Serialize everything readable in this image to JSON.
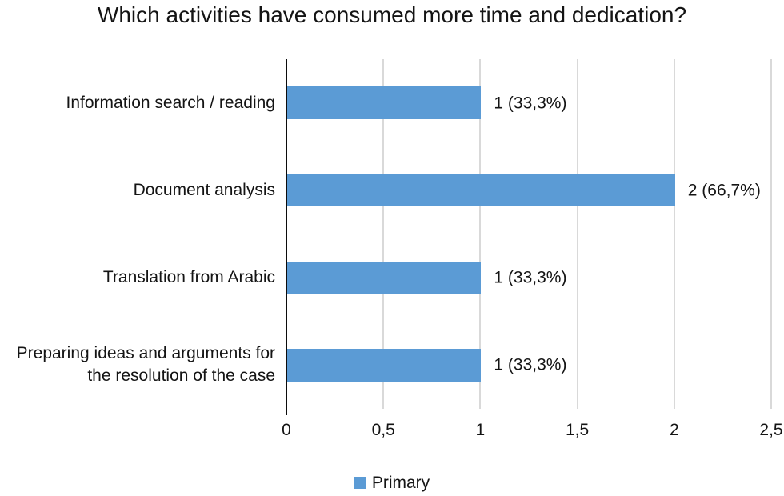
{
  "title": "Which activities have consumed more time and dedication?",
  "chart_data": {
    "type": "bar",
    "orientation": "horizontal",
    "title": "Which activities have consumed more time and dedication?",
    "categories": [
      "Information search / reading",
      "Document analysis",
      "Translation from Arabic",
      "Preparing ideas and arguments for the resolution of the case"
    ],
    "series": [
      {
        "name": "Primary",
        "values": [
          1,
          2,
          1,
          1
        ]
      }
    ],
    "data_labels": [
      "1 (33,3%)",
      "2 (66,7%)",
      "1 (33,3%)",
      "1 (33,3%)"
    ],
    "x_ticks": [
      "0",
      "0,5",
      "1",
      "1,5",
      "2",
      "2,5"
    ],
    "xlim": [
      0,
      2.5
    ],
    "xlabel": "",
    "ylabel": "",
    "grid": true,
    "legend": {
      "position": "bottom",
      "entries": [
        {
          "label": "Primary",
          "color": "#5b9bd5"
        }
      ]
    },
    "colors": {
      "bar": "#5b9bd5",
      "gridline": "#d9d9d9",
      "axis": "#0c0c0c",
      "text": "#141414"
    }
  }
}
